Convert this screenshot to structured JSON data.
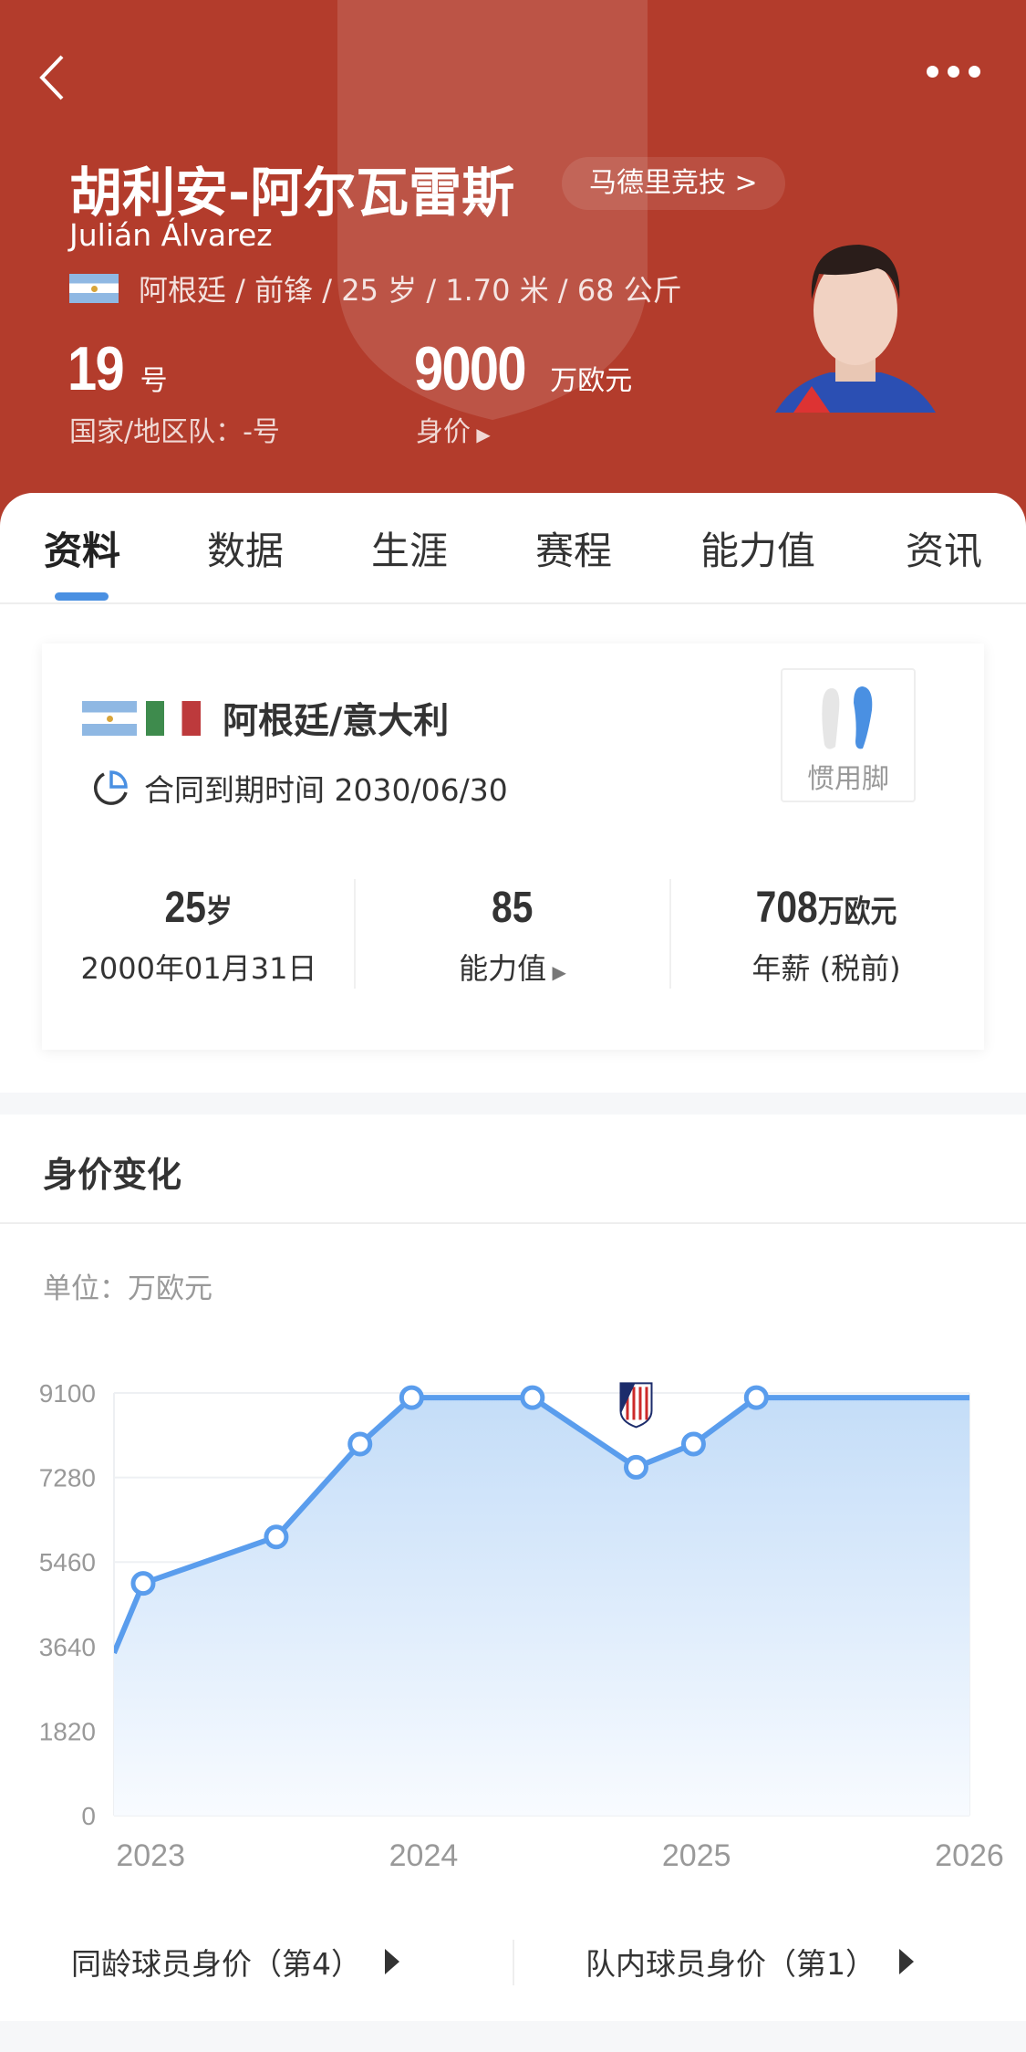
{
  "header": {
    "name_cn": "胡利安-阿尔瓦雷斯",
    "name_en": "Julián Álvarez",
    "club": "马德里竞技 >",
    "info": "阿根廷 / 前锋 / 25 岁 / 1.70 米 / 68 公斤",
    "shirt_number": "19",
    "shirt_unit": "号",
    "national_team_label": "国家/地区队：-号",
    "market_value": "9000",
    "market_value_unit": "万欧元",
    "market_value_label": "身价",
    "bg_color": "#b33c2c"
  },
  "tabs": [
    {
      "label": "资料",
      "active": true
    },
    {
      "label": "数据"
    },
    {
      "label": "生涯"
    },
    {
      "label": "赛程"
    },
    {
      "label": "能力值"
    },
    {
      "label": "资讯"
    }
  ],
  "profile": {
    "nationality": "阿根廷/意大利",
    "contract": "合同到期时间 2030/06/30",
    "preferred_foot_label": "惯用脚",
    "preferred_foot": "right",
    "age_value": "25",
    "age_unit": "岁",
    "birthday": "2000年01月31日",
    "rating_value": "85",
    "rating_label": "能力值",
    "salary_value": "708",
    "salary_unit": "万欧元",
    "salary_label": "年薪 (税前)"
  },
  "value_section": {
    "title": "身价变化",
    "unit_label": "单位：万欧元"
  },
  "chart_data": {
    "type": "area",
    "ylim": [
      0,
      9100
    ],
    "yticks": [
      "9100",
      "7280",
      "5460",
      "3640",
      "1820",
      "0"
    ],
    "xticks": [
      "2023",
      "2024",
      "2025",
      "2026"
    ],
    "xlim": [
      "2022-11-13",
      "2026-01-01"
    ],
    "grid": true,
    "color": "#5a9ded",
    "points": [
      {
        "date": "2022-11-13",
        "value": 3500,
        "marker": false
      },
      {
        "date": "2022-12-22",
        "value": 5000,
        "marker": true
      },
      {
        "date": "2023-06-18",
        "value": 6000,
        "marker": true
      },
      {
        "date": "2023-10-08",
        "value": 8000,
        "marker": true
      },
      {
        "date": "2023-12-16",
        "value": 9000,
        "marker": true
      },
      {
        "date": "2024-05-26",
        "value": 9000,
        "marker": true
      },
      {
        "date": "2024-10-12",
        "value": 7500,
        "marker": true,
        "club_change": "atletico-madrid-crest"
      },
      {
        "date": "2024-12-28",
        "value": 8000,
        "marker": true
      },
      {
        "date": "2025-03-22",
        "value": 9000,
        "marker": true
      },
      {
        "date": "2026-01-01",
        "value": 9000,
        "marker": false
      }
    ]
  },
  "footer": {
    "peer_rank": "同龄球员身价（第4）",
    "team_rank": "队内球员身价（第1）"
  }
}
